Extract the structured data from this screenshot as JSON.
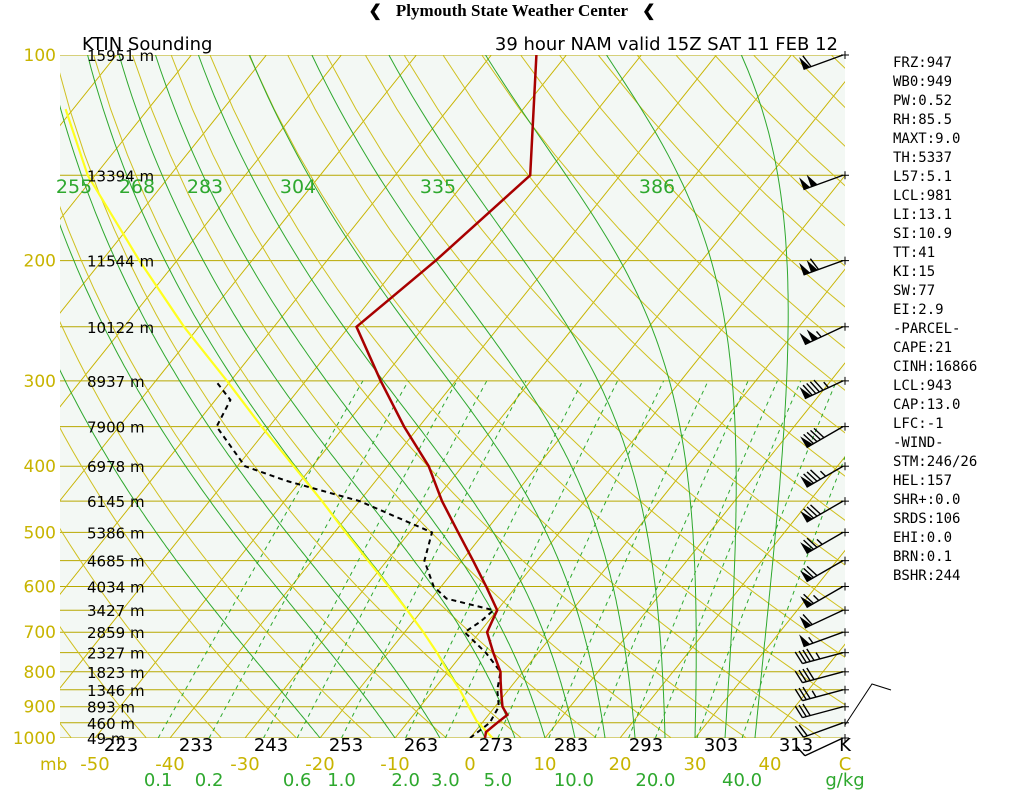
{
  "header": {
    "title": "Plymouth State Weather Center",
    "flag_left": "❮",
    "flag_right": "❮"
  },
  "chart_data": {
    "type": "skew-t",
    "title_left": "KTIN Sounding",
    "title_right": "39 hour NAM valid 15Z SAT 11 FEB 12",
    "pressure_range_mb": [
      1000,
      100
    ],
    "temperature_range_c": [
      -50,
      50
    ],
    "pressure_levels": [
      {
        "mb": 100,
        "height": "15951 m",
        "label": "100"
      },
      {
        "mb": 150,
        "height": "13394 m",
        "label": ""
      },
      {
        "mb": 200,
        "height": "11544 m",
        "label": "200"
      },
      {
        "mb": 250,
        "height": "10122 m",
        "label": ""
      },
      {
        "mb": 300,
        "height": "8937 m",
        "label": "300"
      },
      {
        "mb": 350,
        "height": "7900 m",
        "label": ""
      },
      {
        "mb": 400,
        "height": "6978 m",
        "label": "400"
      },
      {
        "mb": 450,
        "height": "6145 m",
        "label": ""
      },
      {
        "mb": 500,
        "height": "5386 m",
        "label": "500"
      },
      {
        "mb": 550,
        "height": "4685 m",
        "label": ""
      },
      {
        "mb": 600,
        "height": "4034 m",
        "label": "600"
      },
      {
        "mb": 650,
        "height": "3427 m",
        "label": ""
      },
      {
        "mb": 700,
        "height": "2859 m",
        "label": "700"
      },
      {
        "mb": 750,
        "height": "2327 m",
        "label": ""
      },
      {
        "mb": 800,
        "height": "1823 m",
        "label": "800"
      },
      {
        "mb": 850,
        "height": "1346 m",
        "label": ""
      },
      {
        "mb": 900,
        "height": "893 m",
        "label": "900"
      },
      {
        "mb": 950,
        "height": "460 m",
        "label": ""
      },
      {
        "mb": 1000,
        "height": "49 m",
        "label": "1000"
      }
    ],
    "mb_label": "mb",
    "temperature_ticks": [
      "-50",
      "-40",
      "-30",
      "-20",
      "-10",
      "0",
      "10",
      "20",
      "30",
      "40",
      "C"
    ],
    "kelvin_ticks": [
      "223",
      "233",
      "243",
      "253",
      "263",
      "273",
      "283",
      "293",
      "303",
      "313",
      "K"
    ],
    "theta_e_labels": [
      "255",
      "268",
      "283",
      "304",
      "335",
      "386"
    ],
    "mixing_ratio_labels": [
      "0.1",
      "0.2",
      "0.6",
      "1.0",
      "2.0",
      "3.0",
      "5.0",
      "10.0",
      "20.0",
      "40.0",
      "g/kg"
    ],
    "temperature_profile": [
      {
        "p": 1000,
        "t": 2.0
      },
      {
        "p": 980,
        "t": 1.5
      },
      {
        "p": 950,
        "t": 2.0
      },
      {
        "p": 925,
        "t": 2.5
      },
      {
        "p": 900,
        "t": 1.0
      },
      {
        "p": 875,
        "t": 0.0
      },
      {
        "p": 850,
        "t": -1.0
      },
      {
        "p": 825,
        "t": -2.0
      },
      {
        "p": 800,
        "t": -3.0
      },
      {
        "p": 750,
        "t": -6.0
      },
      {
        "p": 700,
        "t": -9.0
      },
      {
        "p": 675,
        "t": -9.5
      },
      {
        "p": 650,
        "t": -10.0
      },
      {
        "p": 600,
        "t": -14.0
      },
      {
        "p": 550,
        "t": -18.5
      },
      {
        "p": 500,
        "t": -23.5
      },
      {
        "p": 450,
        "t": -29.0
      },
      {
        "p": 400,
        "t": -34.5
      },
      {
        "p": 350,
        "t": -42.0
      },
      {
        "p": 300,
        "t": -50.0
      },
      {
        "p": 250,
        "t": -59.0
      },
      {
        "p": 200,
        "t": -55.5
      },
      {
        "p": 150,
        "t": -52.0
      },
      {
        "p": 100,
        "t": -64.0
      }
    ],
    "dewpoint_profile": [
      {
        "p": 1000,
        "t": 0.0
      },
      {
        "p": 975,
        "t": 0.5
      },
      {
        "p": 950,
        "t": 1.0
      },
      {
        "p": 900,
        "t": 0.5
      },
      {
        "p": 850,
        "t": -1.5
      },
      {
        "p": 800,
        "t": -3.0
      },
      {
        "p": 750,
        "t": -7.0
      },
      {
        "p": 700,
        "t": -12.0
      },
      {
        "p": 675,
        "t": -11.0
      },
      {
        "p": 650,
        "t": -10.5
      },
      {
        "p": 625,
        "t": -18.0
      },
      {
        "p": 600,
        "t": -21.0
      },
      {
        "p": 550,
        "t": -25.0
      },
      {
        "p": 500,
        "t": -27.0
      },
      {
        "p": 450,
        "t": -40.0
      },
      {
        "p": 420,
        "t": -52.0
      },
      {
        "p": 400,
        "t": -59.0
      },
      {
        "p": 350,
        "t": -67.0
      },
      {
        "p": 320,
        "t": -68.0
      },
      {
        "p": 300,
        "t": -72.0
      }
    ],
    "parcel_profile": [
      {
        "p": 1000,
        "t": 3.0
      },
      {
        "p": 943,
        "t": -1.0
      },
      {
        "p": 900,
        "t": -3.5
      },
      {
        "p": 850,
        "t": -6.5
      },
      {
        "p": 800,
        "t": -10.0
      },
      {
        "p": 750,
        "t": -13.5
      },
      {
        "p": 700,
        "t": -17.5
      },
      {
        "p": 650,
        "t": -22.0
      },
      {
        "p": 600,
        "t": -27.0
      },
      {
        "p": 550,
        "t": -32.5
      },
      {
        "p": 500,
        "t": -38.5
      },
      {
        "p": 450,
        "t": -45.0
      },
      {
        "p": 400,
        "t": -52.5
      },
      {
        "p": 350,
        "t": -61.0
      },
      {
        "p": 300,
        "t": -70.5
      },
      {
        "p": 250,
        "t": -82.0
      },
      {
        "p": 200,
        "t": -95.0
      },
      {
        "p": 150,
        "t": -111.0
      },
      {
        "p": 120,
        "t": -121.0
      }
    ],
    "wind_profile": [
      {
        "p": 1000,
        "dir": 245,
        "spd": 10
      },
      {
        "p": 950,
        "dir": 250,
        "spd": 20
      },
      {
        "p": 900,
        "dir": 255,
        "spd": 30
      },
      {
        "p": 850,
        "dir": 255,
        "spd": 35
      },
      {
        "p": 800,
        "dir": 255,
        "spd": 40
      },
      {
        "p": 750,
        "dir": 255,
        "spd": 45
      },
      {
        "p": 700,
        "dir": 250,
        "spd": 55
      },
      {
        "p": 650,
        "dir": 245,
        "spd": 60
      },
      {
        "p": 600,
        "dir": 240,
        "spd": 65
      },
      {
        "p": 550,
        "dir": 240,
        "spd": 70
      },
      {
        "p": 500,
        "dir": 240,
        "spd": 75
      },
      {
        "p": 450,
        "dir": 240,
        "spd": 80
      },
      {
        "p": 400,
        "dir": 240,
        "spd": 85
      },
      {
        "p": 350,
        "dir": 240,
        "spd": 90
      },
      {
        "p": 300,
        "dir": 245,
        "spd": 95
      },
      {
        "p": 250,
        "dir": 245,
        "spd": 105
      },
      {
        "p": 200,
        "dir": 250,
        "spd": 110
      },
      {
        "p": 150,
        "dir": 250,
        "spd": 100
      },
      {
        "p": 100,
        "dir": 250,
        "spd": 60
      }
    ],
    "colors": {
      "background": "#f3f8f4",
      "isobar": "#b8a800",
      "isotherm": "#c8b400",
      "dry_adiabat": "#d0c020",
      "moist_adiabat": "#2ea82e",
      "mixing_ratio": "#2ea82e",
      "temperature": "#a80000",
      "dewpoint": "#000000",
      "parcel": "#ffff20",
      "axis_label": "#c8b400",
      "green_label": "#2ea82e"
    }
  },
  "indices": [
    "FRZ:947",
    "WB0:949",
    "PW:0.52",
    "RH:85.5",
    "MAXT:9.0",
    "TH:5337",
    "L57:5.1",
    "LCL:981",
    "LI:13.1",
    "SI:10.9",
    "TT:41",
    "KI:15",
    "SW:77",
    "EI:2.9",
    "-PARCEL-",
    "CAPE:21",
    "CINH:16866",
    "LCL:943",
    "CAP:13.0",
    "LFC:-1",
    "-WIND-",
    "STM:246/26",
    "HEL:157",
    "SHR+:0.0",
    "SRDS:106",
    "EHI:0.0",
    "BRN:0.1",
    "BSHR:244"
  ]
}
